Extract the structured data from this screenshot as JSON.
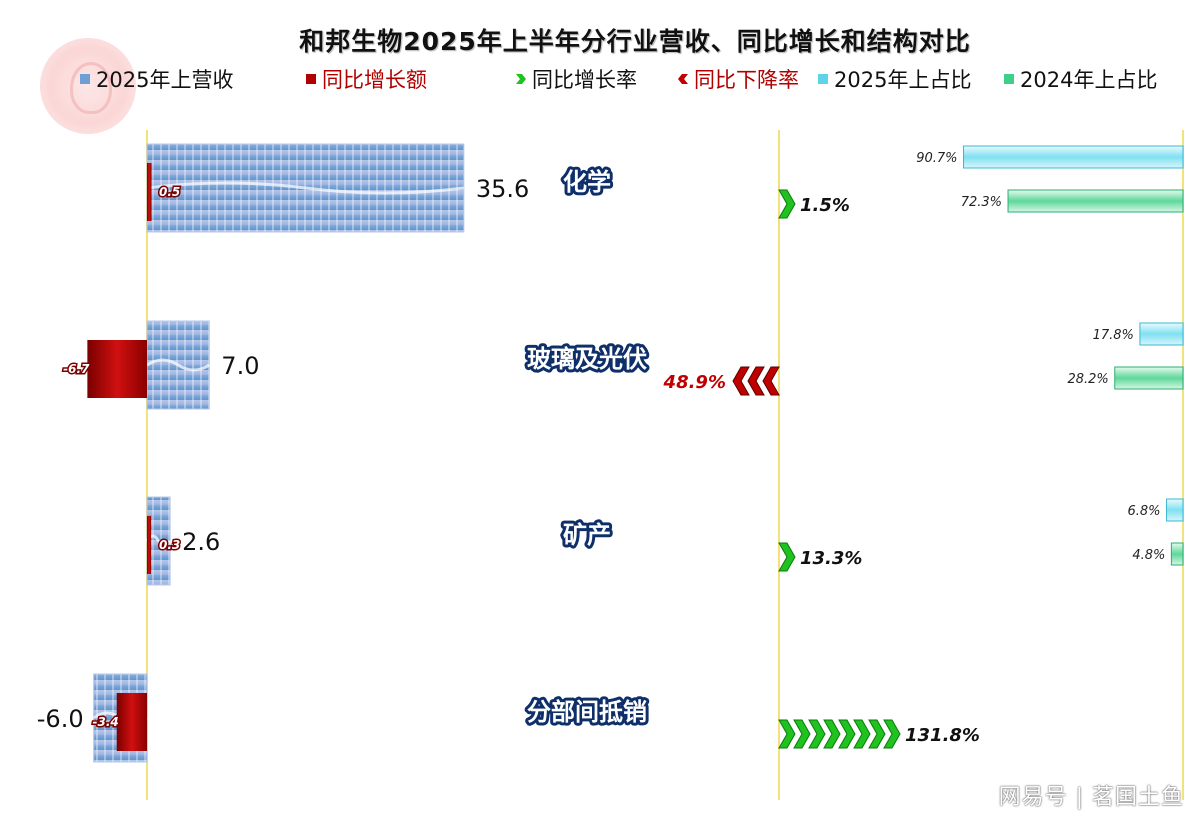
{
  "chart_data": {
    "type": "bar",
    "title": "和邦生物2025年上半年分行业营收、同比增长和结构对比",
    "legend": [
      {
        "name": "2025年上营收",
        "color": "#6f9fd4"
      },
      {
        "name": "同比增长额",
        "color": "#b00000"
      },
      {
        "name": "同比增长率",
        "color": "#1fc21f"
      },
      {
        "name": "同比下降率",
        "color": "#c00000"
      },
      {
        "name": "2025年上占比",
        "color": "#5fd3e8"
      },
      {
        "name": "2024年上占比",
        "color": "#3fcf8a"
      }
    ],
    "categories": [
      "化学",
      "玻璃及光伏",
      "矿产",
      "分部间抵销"
    ],
    "revenue_2025h1": [
      35.6,
      7.0,
      2.6,
      -6.0
    ],
    "revenue_labels": [
      "35.6",
      "7.0",
      "2.6",
      "-6.0"
    ],
    "yoy_change": [
      0.5,
      -6.7,
      0.3,
      -3.4
    ],
    "yoy_change_labels": [
      "0.5",
      "-6.7",
      "0.3",
      "-3.4"
    ],
    "yoy_rate": [
      1.5,
      -48.9,
      13.3,
      131.8
    ],
    "yoy_rate_labels": [
      "1.5%",
      "48.9%",
      "13.3%",
      "131.8%"
    ],
    "share_2025h1": [
      90.7,
      17.8,
      6.8,
      null
    ],
    "share_2025h1_labels": [
      "90.7%",
      "17.8%",
      "6.8%",
      ""
    ],
    "share_2024h1": [
      72.3,
      28.2,
      4.8,
      null
    ],
    "share_2024h1_labels": [
      "72.3%",
      "28.2%",
      "4.8%",
      ""
    ],
    "revenue_axis": [
      -6.0,
      35.6
    ],
    "rate_axis": [
      -48.9,
      131.8
    ],
    "share_axis": [
      0,
      90.7
    ],
    "legend_position": "top",
    "grid": false
  },
  "watermark": "网易号 | 茗国土鱼"
}
